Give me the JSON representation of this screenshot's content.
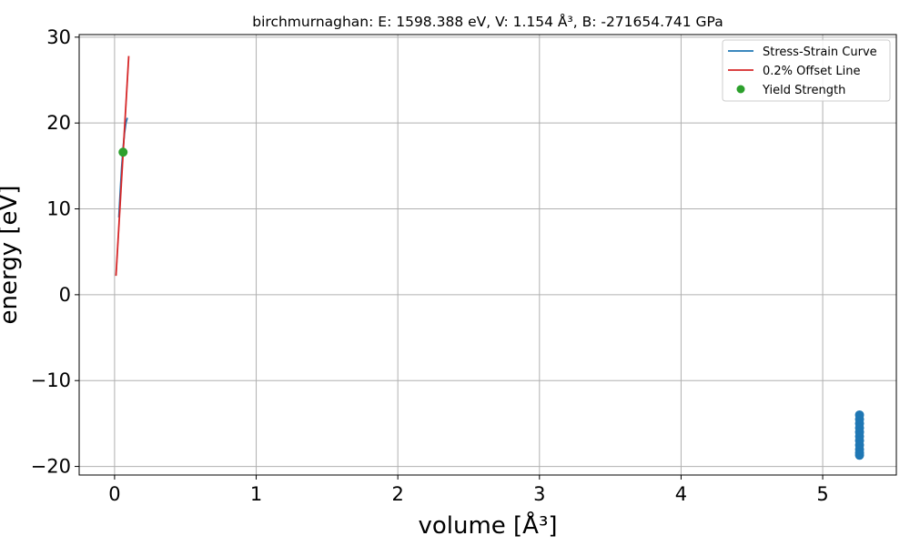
{
  "chart_data": {
    "type": "line",
    "title": "birchmurnaghan: E: 1598.388 eV, V: 1.154 Å³, B: -271654.741 GPa",
    "xlabel": "volume [Å³]",
    "ylabel": "energy [eV]",
    "xlim": [
      -0.25,
      5.52
    ],
    "ylim": [
      -21,
      30.3
    ],
    "xticks": [
      0,
      1,
      2,
      3,
      4,
      5
    ],
    "yticks": [
      -20,
      -10,
      0,
      10,
      20,
      30
    ],
    "xtick_labels": [
      "0",
      "1",
      "2",
      "3",
      "4",
      "5"
    ],
    "ytick_labels": [
      "−20",
      "−10",
      "0",
      "10",
      "20",
      "30"
    ],
    "grid": true,
    "legend_position": "upper right",
    "series": [
      {
        "name": "Stress-Strain Curve",
        "type": "line",
        "color": "#1f77b4",
        "x": [
          0.03,
          0.04,
          0.05,
          0.06,
          0.07,
          0.08,
          0.09
        ],
        "y": [
          9.0,
          12.0,
          14.8,
          17.0,
          18.8,
          20.0,
          20.6
        ]
      },
      {
        "name": "0.2% Offset Line",
        "type": "line",
        "color": "#d62728",
        "x": [
          0.01,
          0.1
        ],
        "y": [
          2.2,
          27.8
        ]
      },
      {
        "name": "Yield Strength",
        "type": "scatter",
        "color": "#2ca02c",
        "x": [
          0.06
        ],
        "y": [
          16.6
        ]
      },
      {
        "type": "scatter",
        "color": "#1f77b4",
        "x": [
          5.26,
          5.26,
          5.26,
          5.26,
          5.26,
          5.26,
          5.26,
          5.26,
          5.26,
          5.26,
          5.26
        ],
        "y": [
          -14.0,
          -14.5,
          -15.0,
          -15.5,
          -16.0,
          -16.5,
          -17.0,
          -17.5,
          -18.0,
          -18.4,
          -18.7
        ]
      }
    ]
  }
}
